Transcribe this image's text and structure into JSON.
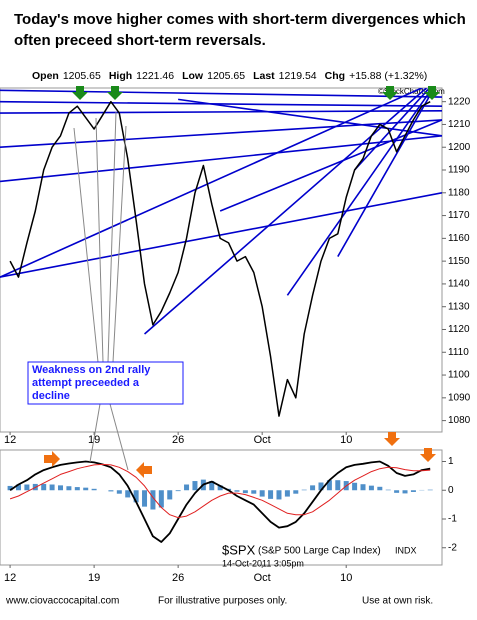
{
  "chart_data": [
    {
      "type": "line",
      "title": [
        "Today's move higher comes with short-term divergences which",
        "often preceed short-term reversals."
      ],
      "quote": [
        {
          "label": "Open",
          "value": 1205.65
        },
        {
          "label": "High",
          "value": 1221.46
        },
        {
          "label": "Low",
          "value": 1205.65
        },
        {
          "label": "Last",
          "value": 1219.54
        },
        {
          "label": "Chg",
          "value": "+15.88 (+1.32%)"
        }
      ],
      "watermark": "©StockCharts.com",
      "annotation": [
        "Weakness on 2nd rally",
        "attempt preceeded a",
        "decline"
      ],
      "x": [
        0,
        0.5,
        1,
        1.5,
        2,
        2.5,
        3,
        3.5,
        4,
        4.5,
        5,
        5.5,
        6,
        6.5,
        7,
        7.5,
        8,
        8.5,
        9,
        9.5,
        10,
        10.5,
        11,
        11.5,
        12,
        12.5,
        13,
        13.5,
        14,
        14.5,
        15,
        15.5,
        16,
        16.5,
        17,
        17.5,
        18,
        18.5,
        19,
        19.5,
        20,
        20.5,
        21,
        21.5,
        22,
        22.5,
        23,
        23.5,
        24,
        24.5,
        25
      ],
      "series": [
        {
          "color": "#000000",
          "values": [
            1150,
            1143,
            1158,
            1172,
            1190,
            1200,
            1205,
            1215,
            1218,
            1213,
            1208,
            1214,
            1220,
            1215,
            1195,
            1168,
            1140,
            1122,
            1128,
            1136,
            1145,
            1160,
            1180,
            1192,
            1175,
            1160,
            1158,
            1150,
            1152,
            1145,
            1130,
            1108,
            1082,
            1098,
            1090,
            1118,
            1135,
            1150,
            1160,
            1162,
            1178,
            1190,
            1195,
            1205,
            1210,
            1208,
            1198,
            1205,
            1212,
            1218,
            1220
          ]
        }
      ],
      "trendline_color": "#0000cc",
      "trendlines": [
        {
          "x": [
            -0.6,
            25.7
          ],
          "y": [
            1225,
            1222
          ]
        },
        {
          "x": [
            -0.6,
            25.7
          ],
          "y": [
            1220,
            1218
          ]
        },
        {
          "x": [
            -0.6,
            25.7
          ],
          "y": [
            1215,
            1216
          ]
        },
        {
          "x": [
            10,
            25.7
          ],
          "y": [
            1221,
            1205
          ]
        },
        {
          "x": [
            -0.6,
            25.7
          ],
          "y": [
            1200,
            1212
          ]
        },
        {
          "x": [
            -0.6,
            25.7
          ],
          "y": [
            1185,
            1205
          ]
        },
        {
          "x": [
            -0.6,
            25.7
          ],
          "y": [
            1143,
            1230
          ]
        },
        {
          "x": [
            8,
            25.7
          ],
          "y": [
            1118,
            1232
          ]
        },
        {
          "x": [
            12.5,
            25.7
          ],
          "y": [
            1172,
            1212
          ]
        },
        {
          "x": [
            -0.6,
            25.7
          ],
          "y": [
            1143,
            1180
          ]
        },
        {
          "x": [
            16.5,
            25.7
          ],
          "y": [
            1135,
            1232
          ]
        },
        {
          "x": [
            19.5,
            25.7
          ],
          "y": [
            1152,
            1232
          ]
        },
        {
          "x": [
            20.5,
            25.7
          ],
          "y": [
            1190,
            1232
          ]
        }
      ],
      "xlim": [
        -0.6,
        25.7
      ],
      "xticks": [
        {
          "value": 0,
          "label": "12"
        },
        {
          "value": 5,
          "label": "19"
        },
        {
          "value": 10,
          "label": "26"
        },
        {
          "value": 15,
          "label": "Oct"
        },
        {
          "value": 20,
          "label": "10"
        }
      ],
      "ylim": [
        1075,
        1226
      ],
      "yticks": [
        1080,
        1090,
        1100,
        1110,
        1120,
        1130,
        1140,
        1150,
        1160,
        1170,
        1180,
        1190,
        1200,
        1210,
        1220
      ]
    },
    {
      "type": "macd",
      "title": "$SPX",
      "subtitle": "(S&P 500 Large Cap Index)",
      "exchange": "INDX",
      "date": "14-Oct-2011 3:05pm",
      "x": [
        0,
        0.5,
        1,
        1.5,
        2,
        2.5,
        3,
        3.5,
        4,
        4.5,
        5,
        5.5,
        6,
        6.5,
        7,
        7.5,
        8,
        8.5,
        9,
        9.5,
        10,
        10.5,
        11,
        11.5,
        12,
        12.5,
        13,
        13.5,
        14,
        14.5,
        15,
        15.5,
        16,
        16.5,
        17,
        17.5,
        18,
        18.5,
        19,
        19.5,
        20,
        20.5,
        21,
        21.5,
        22,
        22.5,
        23,
        23.5,
        24,
        24.5,
        25
      ],
      "histogram": {
        "color": "#4f8fc9",
        "values": [
          0.15,
          0.2,
          0.2,
          0.22,
          0.22,
          0.2,
          0.17,
          0.14,
          0.11,
          0.09,
          0.05,
          0,
          -0.04,
          -0.12,
          -0.25,
          -0.42,
          -0.57,
          -0.67,
          -0.6,
          -0.32,
          -0.03,
          0.2,
          0.32,
          0.37,
          0.32,
          0.17,
          0.05,
          -0.05,
          -0.1,
          -0.12,
          -0.22,
          -0.3,
          -0.32,
          -0.22,
          -0.12,
          0.02,
          0.17,
          0.27,
          0.35,
          0.35,
          0.32,
          0.26,
          0.21,
          0.16,
          0.12,
          0.02,
          -0.09,
          -0.11,
          -0.06,
          0.01,
          0.02
        ]
      },
      "series": [
        {
          "color": "#000000",
          "values": [
            0,
            0.2,
            0.35,
            0.55,
            0.7,
            0.8,
            0.88,
            0.93,
            0.97,
            1,
            0.97,
            0.9,
            0.8,
            0.55,
            0.15,
            -0.4,
            -1,
            -1.6,
            -1.8,
            -1.5,
            -1,
            -0.5,
            -0.1,
            0.2,
            0.3,
            0.15,
            0,
            -0.2,
            -0.35,
            -0.5,
            -0.8,
            -1.1,
            -1.3,
            -1.25,
            -1.1,
            -0.8,
            -0.4,
            0,
            0.35,
            0.6,
            0.8,
            0.88,
            0.92,
            0.97,
            1,
            0.85,
            0.6,
            0.5,
            0.55,
            0.7,
            0.75
          ]
        },
        {
          "color": "#e02020",
          "values": [
            -0.3,
            -0.2,
            -0.05,
            0.1,
            0.25,
            0.4,
            0.55,
            0.65,
            0.75,
            0.82,
            0.88,
            0.9,
            0.88,
            0.8,
            0.65,
            0.45,
            0.15,
            -0.25,
            -0.6,
            -0.85,
            -0.95,
            -0.9,
            -0.75,
            -0.55,
            -0.35,
            -0.2,
            -0.1,
            -0.1,
            -0.15,
            -0.25,
            -0.35,
            -0.5,
            -0.65,
            -0.8,
            -0.85,
            -0.85,
            -0.75,
            -0.55,
            -0.35,
            -0.1,
            0.15,
            0.35,
            0.5,
            0.65,
            0.75,
            0.8,
            0.78,
            0.72,
            0.68,
            0.68,
            0.7
          ]
        }
      ],
      "xlim": [
        -0.6,
        25.7
      ],
      "xticks": [
        {
          "value": 0,
          "label": "12"
        },
        {
          "value": 5,
          "label": "19"
        },
        {
          "value": 10,
          "label": "26"
        },
        {
          "value": 15,
          "label": "Oct"
        },
        {
          "value": 20,
          "label": "10"
        }
      ],
      "ylim": [
        -2.6,
        1.4
      ],
      "yticks": [
        1,
        0,
        -1,
        -2
      ]
    }
  ],
  "footer": [
    "www.ciovaccocapital.com",
    "For illustrative purposes only.",
    "Use at own risk."
  ]
}
